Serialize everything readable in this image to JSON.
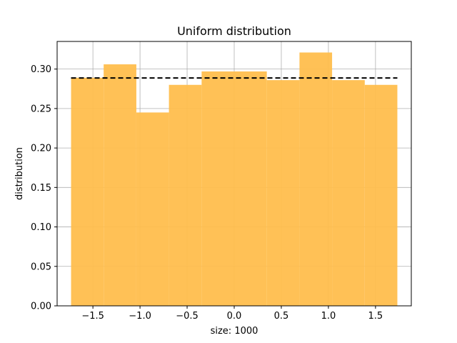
{
  "chart_data": {
    "type": "bar",
    "title": "Uniform distribution",
    "xlabel": "size: 1000",
    "ylabel": "distribution",
    "xlim": [
      -1.88,
      1.88
    ],
    "ylim": [
      0.0,
      0.335
    ],
    "grid": true,
    "xticks": [
      -1.5,
      -1.0,
      -0.5,
      0.0,
      0.5,
      1.0,
      1.5
    ],
    "xtick_labels": [
      "−1.5",
      "−1.0",
      "−0.5",
      "0.0",
      "0.5",
      "1.0",
      "1.5"
    ],
    "yticks": [
      0.0,
      0.05,
      0.1,
      0.15,
      0.2,
      0.25,
      0.3
    ],
    "ytick_labels": [
      "0.00",
      "0.05",
      "0.10",
      "0.15",
      "0.20",
      "0.25",
      "0.30"
    ],
    "bins": [
      {
        "start": -1.732,
        "end": -1.386,
        "value": 0.289
      },
      {
        "start": -1.386,
        "end": -1.039,
        "value": 0.306
      },
      {
        "start": -1.039,
        "end": -0.693,
        "value": 0.245
      },
      {
        "start": -0.693,
        "end": -0.346,
        "value": 0.28
      },
      {
        "start": -0.346,
        "end": 0.0,
        "value": 0.297
      },
      {
        "start": 0.0,
        "end": 0.346,
        "value": 0.297
      },
      {
        "start": 0.346,
        "end": 0.693,
        "value": 0.286
      },
      {
        "start": 0.693,
        "end": 1.039,
        "value": 0.321
      },
      {
        "start": 1.039,
        "end": 1.386,
        "value": 0.286
      },
      {
        "start": 1.386,
        "end": 1.732,
        "value": 0.28
      }
    ],
    "reference_line": {
      "value": 0.2887,
      "x_start": -1.732,
      "x_end": 1.732,
      "style": "dashed",
      "color": "#000000"
    },
    "bar_color": "#ffbe4d",
    "grid_color": "#b0b0b0"
  }
}
